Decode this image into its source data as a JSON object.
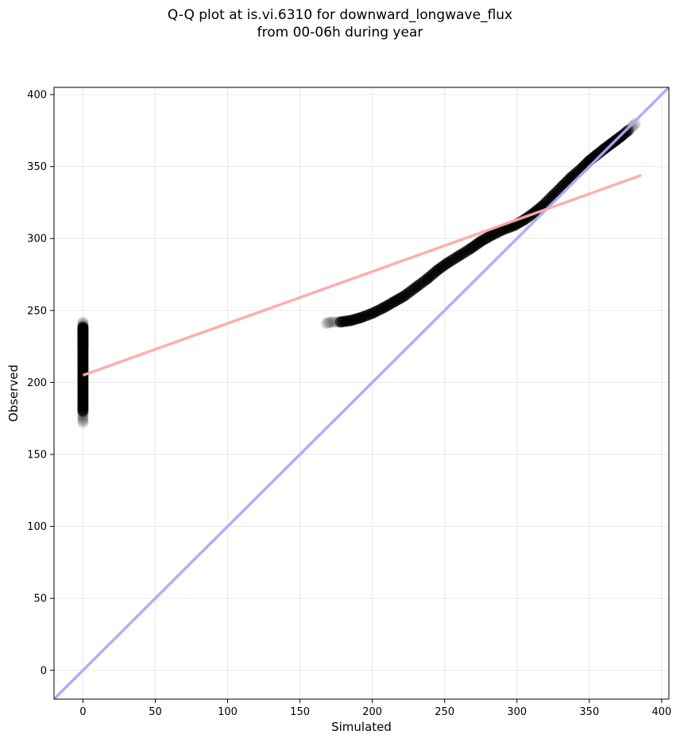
{
  "title_line1": "Q-Q plot at is.vi.6310 for downward_longwave_flux",
  "title_line2": "from 00-06h during year",
  "chart_data": {
    "type": "scatter",
    "title": "Q-Q plot at is.vi.6310 for downward_longwave_flux\nfrom 00-06h during year",
    "xlabel": "Simulated",
    "ylabel": "Observed",
    "xlim": [
      -20,
      405
    ],
    "ylim": [
      -20,
      405
    ],
    "xticks": [
      0,
      50,
      100,
      150,
      200,
      250,
      300,
      350,
      400
    ],
    "yticks": [
      0,
      50,
      100,
      150,
      200,
      250,
      300,
      350,
      400
    ],
    "grid": true,
    "series": [
      {
        "kind": "points",
        "color": "#000000",
        "clusters": [
          {
            "x": [
              0,
              0,
              0,
              0,
              0,
              0,
              0,
              0,
              0,
              0,
              0,
              0,
              0,
              0,
              0,
              0,
              0
            ],
            "y": [
              172,
              176,
              180,
              185,
              190,
              195,
              200,
              205,
              210,
              215,
              220,
              225,
              228,
              232,
              236,
              239,
              242
            ]
          },
          {
            "x": [
              168,
              172,
              178,
              185,
              192,
              200,
              208,
              215,
              222,
              230,
              238,
              245,
              252,
              260,
              268,
              275,
              282,
              290,
              298,
              305,
              312,
              318,
              325,
              332,
              338,
              345,
              350,
              355,
              360,
              364,
              368,
              372,
              378,
              382
            ],
            "y": [
              241,
              242,
              242,
              243,
              245,
              248,
              252,
              256,
              260,
              266,
              272,
              278,
              283,
              288,
              293,
              298,
              302,
              306,
              309,
              313,
              318,
              323,
              330,
              337,
              343,
              349,
              354,
              358,
              362,
              365,
              368,
              371,
              376,
              380
            ]
          }
        ]
      },
      {
        "kind": "line",
        "color": "#aaaaff",
        "x": [
          -20,
          405
        ],
        "y": [
          -20,
          405
        ]
      },
      {
        "kind": "line",
        "color": "#ffaaaa",
        "x": [
          0,
          386
        ],
        "y": [
          205,
          344
        ]
      }
    ]
  }
}
